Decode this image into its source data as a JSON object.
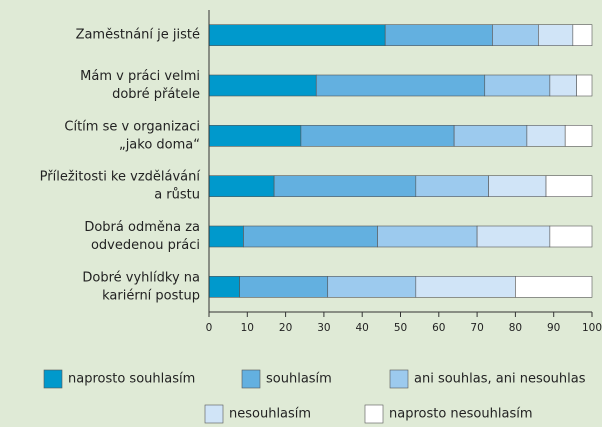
{
  "chart_data": {
    "type": "bar",
    "orientation": "horizontal",
    "stacked": true,
    "categories": [
      [
        "Zaměstnání je jisté"
      ],
      [
        "Mám v práci velmi",
        "dobré přátele"
      ],
      [
        "Cítím se v organizaci",
        "„jako doma“"
      ],
      [
        "Příležitosti ke vzdělávání",
        "a růstu"
      ],
      [
        "Dobrá odměna za",
        "odvedenou práci"
      ],
      [
        "Dobré vyhlídky na",
        "kariérní postup"
      ]
    ],
    "series": [
      {
        "name": "naprosto souhlasím",
        "color": "#0099cc",
        "values": [
          46,
          28,
          24,
          17,
          9,
          8
        ]
      },
      {
        "name": "souhlasím",
        "color": "#63b0e0",
        "values": [
          28,
          44,
          40,
          37,
          35,
          23
        ]
      },
      {
        "name": "ani souhlas, ani nesouhlas",
        "color": "#9ccaee",
        "values": [
          12,
          17,
          19,
          19,
          26,
          23
        ]
      },
      {
        "name": "nesouhlasím",
        "color": "#d0e4f7",
        "values": [
          9,
          7,
          10,
          15,
          19,
          26
        ]
      },
      {
        "name": "naprosto nesouhlasím",
        "color": "#ffffff",
        "values": [
          5,
          4,
          7,
          12,
          11,
          20
        ]
      }
    ],
    "xlim": [
      0,
      100
    ],
    "xticks": [
      0,
      10,
      20,
      30,
      40,
      50,
      60,
      70,
      80,
      90,
      100
    ]
  }
}
